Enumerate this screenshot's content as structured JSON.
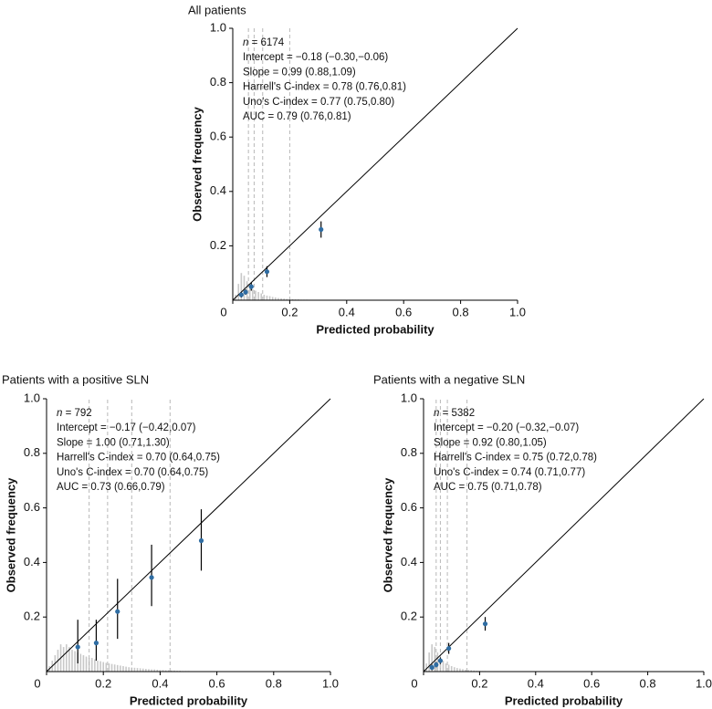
{
  "colors": {
    "point": "#2f6da3",
    "line": "#000000",
    "cutoff": "#b8b8b8",
    "hist": "#c8c8c8"
  },
  "chart_data": [
    {
      "type": "scatter",
      "title": "All patients",
      "xlabel": "Predicted probability",
      "ylabel": "Observed frequency",
      "xlim": [
        0,
        1
      ],
      "ylim": [
        0,
        1
      ],
      "xticks": [
        "0",
        "0.2",
        "0.4",
        "0.6",
        "0.8",
        "1.0"
      ],
      "yticks": [
        "0.2",
        "0.4",
        "0.6",
        "0.8",
        "1.0"
      ],
      "n_label": "n",
      "stats": [
        " = 6174",
        "Intercept = −0.18 (−0.30,−0.06)",
        "Slope = 0.99 (0.88,1.09)",
        "Harrell's C-index = 0.78 (0.76,0.81)",
        "Uno's C-index = 0.77 (0.75,0.80)",
        "AUC = 0.79 (0.76,0.81)"
      ],
      "points": [
        {
          "x": 0.03,
          "y": 0.02,
          "lo": 0.01,
          "hi": 0.03
        },
        {
          "x": 0.045,
          "y": 0.03,
          "lo": 0.02,
          "hi": 0.04
        },
        {
          "x": 0.065,
          "y": 0.05,
          "lo": 0.035,
          "hi": 0.065
        },
        {
          "x": 0.12,
          "y": 0.105,
          "lo": 0.085,
          "hi": 0.125
        },
        {
          "x": 0.31,
          "y": 0.26,
          "lo": 0.23,
          "hi": 0.29
        }
      ],
      "cutoffs": [
        0.055,
        0.075,
        0.105,
        0.2
      ],
      "histogram": [
        0.02,
        0.06,
        0.1,
        0.09,
        0.07,
        0.05,
        0.04,
        0.035,
        0.03,
        0.025,
        0.02,
        0.017,
        0.015,
        0.012,
        0.01,
        0.008,
        0.007,
        0.006,
        0.005,
        0.004,
        0.004,
        0.003,
        0.003,
        0.002,
        0.002,
        0.002,
        0.001,
        0.001
      ]
    },
    {
      "type": "scatter",
      "title": "Patients with a positive SLN",
      "xlabel": "Predicted probability",
      "ylabel": "Observed frequency",
      "xlim": [
        0,
        1
      ],
      "ylim": [
        0,
        1
      ],
      "xticks": [
        "0",
        "0.2",
        "0.4",
        "0.6",
        "0.8",
        "1.0"
      ],
      "yticks": [
        "0.2",
        "0.4",
        "0.6",
        "0.8",
        "1.0"
      ],
      "n_label": "n",
      "stats": [
        " = 792",
        "Intercept = −0.17 (−0.42,0.07)",
        "Slope = 1.00 (0.71,1.30)",
        "Harrell's C-index = 0.70 (0.64,0.75)",
        "Uno's C-index = 0.70 (0.64,0.75)",
        "AUC = 0.73 (0.66,0.79)"
      ],
      "points": [
        {
          "x": 0.11,
          "y": 0.09,
          "lo": 0.03,
          "hi": 0.19
        },
        {
          "x": 0.175,
          "y": 0.105,
          "lo": 0.04,
          "hi": 0.19
        },
        {
          "x": 0.25,
          "y": 0.22,
          "lo": 0.12,
          "hi": 0.34
        },
        {
          "x": 0.37,
          "y": 0.345,
          "lo": 0.24,
          "hi": 0.465
        },
        {
          "x": 0.545,
          "y": 0.48,
          "lo": 0.37,
          "hi": 0.595
        }
      ],
      "cutoffs": [
        0.15,
        0.215,
        0.3,
        0.435
      ],
      "histogram": [
        0.02,
        0.04,
        0.06,
        0.08,
        0.1,
        0.09,
        0.1,
        0.09,
        0.08,
        0.075,
        0.07,
        0.065,
        0.06,
        0.055,
        0.05,
        0.05,
        0.045,
        0.04,
        0.038,
        0.035,
        0.032,
        0.03,
        0.028,
        0.026,
        0.024,
        0.022,
        0.02,
        0.018,
        0.016,
        0.015,
        0.014,
        0.013,
        0.012,
        0.011,
        0.01,
        0.009,
        0.008,
        0.008,
        0.007,
        0.006,
        0.006,
        0.005,
        0.005,
        0.004,
        0.004,
        0.003,
        0.003,
        0.002,
        0.002,
        0.002
      ]
    },
    {
      "type": "scatter",
      "title": "Patients with a negative SLN",
      "xlabel": "Predicted probability",
      "ylabel": "Observed frequency",
      "xlim": [
        0,
        1
      ],
      "ylim": [
        0,
        1
      ],
      "xticks": [
        "0",
        "0.2",
        "0.4",
        "0.6",
        "0.8",
        "1.0"
      ],
      "yticks": [
        "0.2",
        "0.4",
        "0.6",
        "0.8",
        "1.0"
      ],
      "n_label": "n",
      "stats": [
        " = 5382",
        "Intercept = −0.20 (−0.32,−0.07)",
        "Slope = 0.92 (0.80,1.05)",
        "Harrell's C-index = 0.75 (0.72,0.78)",
        "Uno's C-index = 0.74 (0.71,0.77)",
        "AUC = 0.75 (0.71,0.78)"
      ],
      "points": [
        {
          "x": 0.03,
          "y": 0.015,
          "lo": 0.005,
          "hi": 0.025
        },
        {
          "x": 0.045,
          "y": 0.025,
          "lo": 0.015,
          "hi": 0.035
        },
        {
          "x": 0.06,
          "y": 0.04,
          "lo": 0.028,
          "hi": 0.052
        },
        {
          "x": 0.09,
          "y": 0.085,
          "lo": 0.065,
          "hi": 0.105
        },
        {
          "x": 0.22,
          "y": 0.175,
          "lo": 0.15,
          "hi": 0.2
        }
      ],
      "cutoffs": [
        0.045,
        0.06,
        0.085,
        0.155
      ],
      "histogram": [
        0.03,
        0.07,
        0.1,
        0.09,
        0.07,
        0.05,
        0.04,
        0.03,
        0.025,
        0.02,
        0.016,
        0.013,
        0.011,
        0.009,
        0.007,
        0.006,
        0.005,
        0.004,
        0.003,
        0.003,
        0.002,
        0.002,
        0.001,
        0.001
      ]
    }
  ]
}
